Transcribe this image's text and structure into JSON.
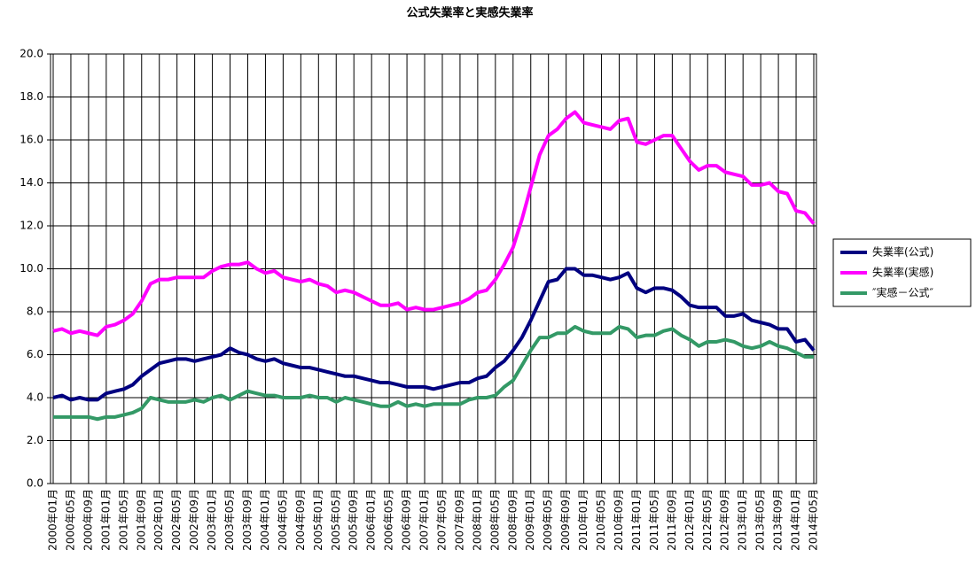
{
  "chart_data": {
    "type": "line",
    "title": "公式失業率と実感失業率",
    "categories": [
      "2000年01月",
      null,
      "2000年05月",
      null,
      "2000年09月",
      null,
      "2001年01月",
      null,
      "2001年05月",
      null,
      "2001年09月",
      null,
      "2002年01月",
      null,
      "2002年05月",
      null,
      "2002年09月",
      null,
      "2003年01月",
      null,
      "2003年05月",
      null,
      "2003年09月",
      null,
      "2004年01月",
      null,
      "2004年05月",
      null,
      "2004年09月",
      null,
      "2005年01月",
      null,
      "2005年05月",
      null,
      "2005年09月",
      null,
      "2006年01月",
      null,
      "2006年05月",
      null,
      "2006年09月",
      null,
      "2007年01月",
      null,
      "2007年05月",
      null,
      "2007年09月",
      null,
      "2008年01月",
      null,
      "2008年05月",
      null,
      "2008年09月",
      null,
      "2009年01月",
      null,
      "2009年05月",
      null,
      "2009年09月",
      null,
      "2010年01月",
      null,
      "2010年05月",
      null,
      "2010年09月",
      null,
      "2011年01月",
      null,
      "2011年05月",
      null,
      "2011年09月",
      null,
      "2012年01月",
      null,
      "2012年05月",
      null,
      "2012年09月",
      null,
      "2013年01月",
      null,
      "2013年05月",
      null,
      "2013年09月",
      null,
      "2014年01月",
      null,
      "2014年05月"
    ],
    "series": [
      {
        "name": "失業率(公式)",
        "color": "#000080",
        "values": [
          4.0,
          4.1,
          3.9,
          4.0,
          3.9,
          3.9,
          4.2,
          4.3,
          4.4,
          4.6,
          5.0,
          5.3,
          5.6,
          5.7,
          5.8,
          5.8,
          5.7,
          5.8,
          5.9,
          6.0,
          6.3,
          6.1,
          6.0,
          5.8,
          5.7,
          5.8,
          5.6,
          5.5,
          5.4,
          5.4,
          5.3,
          5.2,
          5.1,
          5.0,
          5.0,
          4.9,
          4.8,
          4.7,
          4.7,
          4.6,
          4.5,
          4.5,
          4.5,
          4.4,
          4.5,
          4.6,
          4.7,
          4.7,
          4.9,
          5.0,
          5.4,
          5.7,
          6.2,
          6.8,
          7.6,
          8.5,
          9.4,
          9.5,
          10.0,
          10.0,
          9.7,
          9.7,
          9.6,
          9.5,
          9.6,
          9.8,
          9.1,
          8.9,
          9.1,
          9.1,
          9.0,
          8.7,
          8.3,
          8.2,
          8.2,
          8.2,
          7.8,
          7.8,
          7.9,
          7.6,
          7.5,
          7.4,
          7.2,
          7.2,
          6.6,
          6.7,
          6.2
        ]
      },
      {
        "name": "失業率(実感)",
        "color": "#ff00ff",
        "values": [
          7.1,
          7.2,
          7.0,
          7.1,
          7.0,
          6.9,
          7.3,
          7.4,
          7.6,
          7.9,
          8.5,
          9.3,
          9.5,
          9.5,
          9.6,
          9.6,
          9.6,
          9.6,
          9.9,
          10.1,
          10.2,
          10.2,
          10.3,
          10.0,
          9.8,
          9.9,
          9.6,
          9.5,
          9.4,
          9.5,
          9.3,
          9.2,
          8.9,
          9.0,
          8.9,
          8.7,
          8.5,
          8.3,
          8.3,
          8.4,
          8.1,
          8.2,
          8.1,
          8.1,
          8.2,
          8.3,
          8.4,
          8.6,
          8.9,
          9.0,
          9.5,
          10.2,
          11.0,
          12.3,
          13.8,
          15.3,
          16.2,
          16.5,
          17.0,
          17.3,
          16.8,
          16.7,
          16.6,
          16.5,
          16.9,
          17.0,
          15.9,
          15.8,
          16.0,
          16.2,
          16.2,
          15.6,
          15.0,
          14.6,
          14.8,
          14.8,
          14.5,
          14.4,
          14.3,
          13.9,
          13.9,
          14.0,
          13.6,
          13.5,
          12.7,
          12.6,
          12.1
        ]
      },
      {
        "name": "″実感－公式″",
        "color": "#339966",
        "values": [
          3.1,
          3.1,
          3.1,
          3.1,
          3.1,
          3.0,
          3.1,
          3.1,
          3.2,
          3.3,
          3.5,
          4.0,
          3.9,
          3.8,
          3.8,
          3.8,
          3.9,
          3.8,
          4.0,
          4.1,
          3.9,
          4.1,
          4.3,
          4.2,
          4.1,
          4.1,
          4.0,
          4.0,
          4.0,
          4.1,
          4.0,
          4.0,
          3.8,
          4.0,
          3.9,
          3.8,
          3.7,
          3.6,
          3.6,
          3.8,
          3.6,
          3.7,
          3.6,
          3.7,
          3.7,
          3.7,
          3.7,
          3.9,
          4.0,
          4.0,
          4.1,
          4.5,
          4.8,
          5.5,
          6.2,
          6.8,
          6.8,
          7.0,
          7.0,
          7.3,
          7.1,
          7.0,
          7.0,
          7.0,
          7.3,
          7.2,
          6.8,
          6.9,
          6.9,
          7.1,
          7.2,
          6.9,
          6.7,
          6.4,
          6.6,
          6.6,
          6.7,
          6.6,
          6.4,
          6.3,
          6.4,
          6.6,
          6.4,
          6.3,
          6.1,
          5.9,
          5.9
        ]
      }
    ],
    "ylim": [
      0,
      20
    ],
    "yticks": [
      {
        "value": 0,
        "label": "0.0"
      },
      {
        "value": 2,
        "label": "2.0"
      },
      {
        "value": 4,
        "label": "4.0"
      },
      {
        "value": 6,
        "label": "6.0"
      },
      {
        "value": 8,
        "label": "8.0"
      },
      {
        "value": 10,
        "label": "10.0"
      },
      {
        "value": 12,
        "label": "12.0"
      },
      {
        "value": 14,
        "label": "14.0"
      },
      {
        "value": 16,
        "label": "16.0"
      },
      {
        "value": 18,
        "label": "18.0"
      },
      {
        "value": 20,
        "label": "20.0"
      }
    ],
    "grid": true,
    "legend": "right"
  }
}
